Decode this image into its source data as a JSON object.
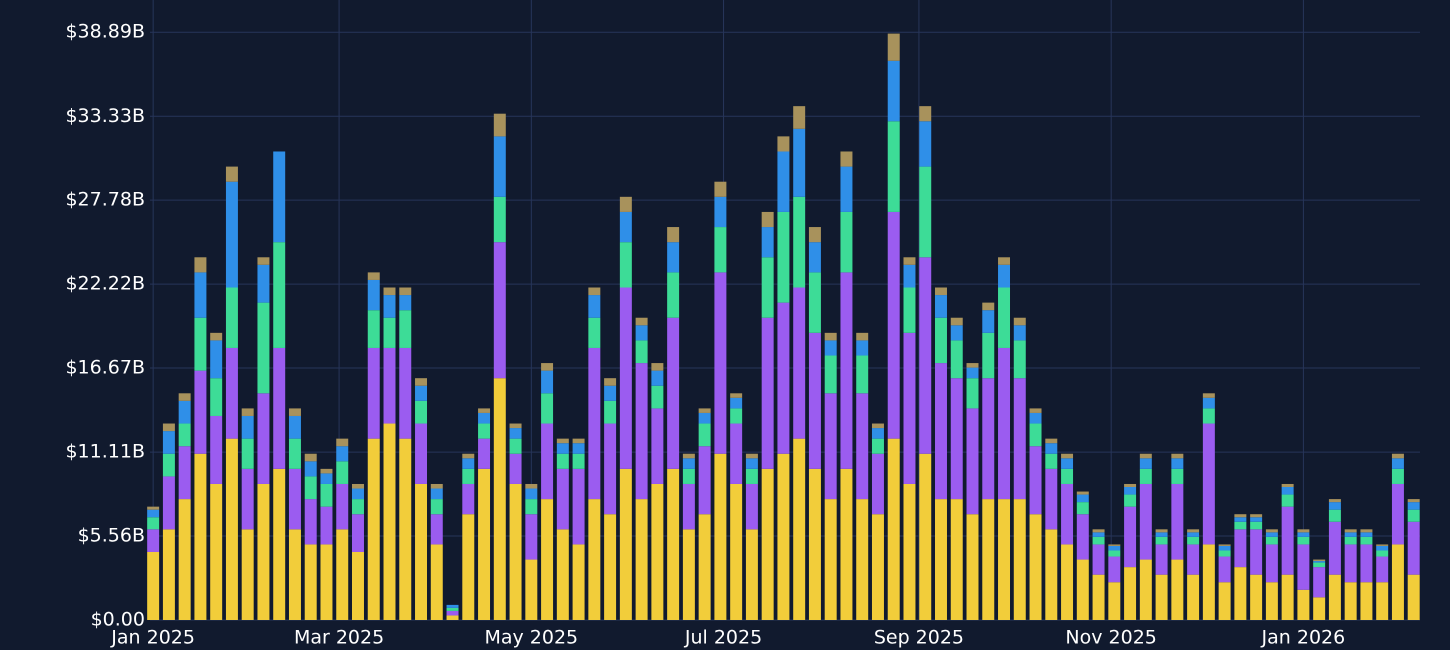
{
  "chart_data": {
    "type": "stacked-bar",
    "x": [
      "2025-01-01",
      "2025-01-06",
      "2025-01-11",
      "2025-01-16",
      "2025-01-21",
      "2025-01-26",
      "2025-01-31",
      "2025-02-05",
      "2025-02-10",
      "2025-02-15",
      "2025-02-20",
      "2025-02-25",
      "2025-03-02",
      "2025-03-07",
      "2025-03-12",
      "2025-03-17",
      "2025-03-22",
      "2025-03-27",
      "2025-04-01",
      "2025-04-06",
      "2025-04-11",
      "2025-04-16",
      "2025-04-21",
      "2025-04-26",
      "2025-05-01",
      "2025-05-06",
      "2025-05-11",
      "2025-05-16",
      "2025-05-21",
      "2025-05-26",
      "2025-05-31",
      "2025-06-05",
      "2025-06-10",
      "2025-06-15",
      "2025-06-20",
      "2025-06-25",
      "2025-06-30",
      "2025-07-05",
      "2025-07-10",
      "2025-07-15",
      "2025-07-20",
      "2025-07-25",
      "2025-07-30",
      "2025-08-04",
      "2025-08-09",
      "2025-08-14",
      "2025-08-19",
      "2025-08-24",
      "2025-08-29",
      "2025-09-03",
      "2025-09-08",
      "2025-09-13",
      "2025-09-18",
      "2025-09-23",
      "2025-09-28",
      "2025-10-03",
      "2025-10-08",
      "2025-10-13",
      "2025-10-18",
      "2025-10-23",
      "2025-10-28",
      "2025-11-02",
      "2025-11-07",
      "2025-11-12",
      "2025-11-17",
      "2025-11-22",
      "2025-11-27",
      "2025-12-02",
      "2025-12-07",
      "2025-12-12",
      "2025-12-17",
      "2025-12-22",
      "2025-12-27",
      "2026-01-01",
      "2026-01-06",
      "2026-01-11",
      "2026-01-16",
      "2026-01-21",
      "2026-01-26",
      "2026-01-31",
      "2026-02-05"
    ],
    "series": [
      {
        "color": "#f2cd3a",
        "values": [
          4.5,
          6,
          8,
          11,
          9,
          12,
          6,
          9,
          10,
          6,
          5,
          5,
          6,
          4.5,
          12,
          13,
          12,
          9,
          5,
          0.3,
          7,
          10,
          16,
          9,
          4,
          8,
          6,
          5,
          8,
          7,
          10,
          8,
          9,
          10,
          6,
          7,
          11,
          9,
          6,
          10,
          11,
          12,
          10,
          8,
          10,
          8,
          7,
          12,
          9,
          11,
          8,
          8,
          7,
          8,
          8,
          8,
          7,
          6,
          5,
          4,
          3,
          2.5,
          3.5,
          4,
          3,
          4,
          3,
          5,
          2.5,
          3.5,
          3,
          2.5,
          3,
          2,
          1.5,
          3,
          2.5,
          2.5,
          2.5,
          5,
          3
        ]
      },
      {
        "color": "#9b5cf0",
        "values": [
          1.5,
          3.5,
          3.5,
          5.5,
          4.5,
          6,
          4,
          6,
          8,
          4,
          3,
          2.5,
          3,
          2.5,
          6,
          5,
          6,
          4,
          2,
          0.3,
          2,
          2,
          9,
          2,
          3,
          5,
          4,
          5,
          10,
          6,
          12,
          9,
          5,
          10,
          3,
          4.5,
          12,
          4,
          3,
          10,
          10,
          10,
          9,
          7,
          13,
          7,
          4,
          15,
          10,
          13,
          9,
          8,
          7,
          8,
          10,
          8,
          4.5,
          4,
          4,
          3,
          2,
          1.7,
          4,
          5,
          2,
          5,
          2,
          8,
          1.7,
          2.5,
          3,
          2.5,
          4.5,
          3,
          2,
          3.5,
          2.5,
          2.5,
          1.7,
          4,
          3.5
        ]
      },
      {
        "color": "#3ddc97",
        "values": [
          0.8,
          1.5,
          1.5,
          3.5,
          2.5,
          4,
          2,
          6,
          7,
          2,
          1.5,
          1.5,
          1.5,
          1,
          2.5,
          2,
          2.5,
          1.5,
          1,
          0.2,
          1,
          1,
          3,
          1,
          1,
          2,
          1,
          1,
          2,
          1.5,
          3,
          1.5,
          1.5,
          3,
          1,
          1.5,
          3,
          1,
          1,
          4,
          6,
          6,
          4,
          2.5,
          4,
          2.5,
          1,
          6,
          3,
          6,
          3,
          2.5,
          2,
          3,
          4,
          2.5,
          1.5,
          1,
          1,
          0.8,
          0.5,
          0.4,
          0.8,
          1,
          0.5,
          1,
          0.5,
          1,
          0.4,
          0.5,
          0.5,
          0.5,
          0.8,
          0.5,
          0.3,
          0.8,
          0.5,
          0.5,
          0.4,
          1,
          0.8
        ]
      },
      {
        "color": "#2f8fe8",
        "values": [
          0.5,
          1.5,
          1.5,
          3,
          2.5,
          7,
          1.5,
          2.5,
          6,
          1.5,
          1,
          0.7,
          1,
          0.7,
          2,
          1.5,
          1,
          1,
          0.7,
          0.2,
          0.7,
          0.7,
          4,
          0.7,
          0.7,
          1.5,
          0.7,
          0.7,
          1.5,
          1,
          2,
          1,
          1,
          2,
          0.7,
          0.7,
          2,
          0.7,
          0.7,
          2,
          4,
          4.5,
          2,
          1,
          3,
          1,
          0.7,
          4,
          1.5,
          3,
          1.5,
          1,
          0.7,
          1.5,
          1.5,
          1,
          0.7,
          0.7,
          0.7,
          0.5,
          0.3,
          0.3,
          0.5,
          0.7,
          0.3,
          0.7,
          0.3,
          0.7,
          0.3,
          0.3,
          0.3,
          0.3,
          0.5,
          0.3,
          0.1,
          0.5,
          0.3,
          0.3,
          0.3,
          0.7,
          0.5
        ]
      },
      {
        "color": "#a8925c",
        "values": [
          0.2,
          0.5,
          0.5,
          1,
          0.5,
          1,
          0.5,
          0.5,
          0,
          0.5,
          0.5,
          0.3,
          0.5,
          0.3,
          0.5,
          0.5,
          0.5,
          0.5,
          0.3,
          0,
          0.3,
          0.3,
          1.5,
          0.3,
          0.3,
          0.5,
          0.3,
          0.3,
          0.5,
          0.5,
          1,
          0.5,
          0.5,
          1,
          0.3,
          0.3,
          1,
          0.3,
          0.3,
          1,
          1,
          1.5,
          1,
          0.5,
          1,
          0.5,
          0.3,
          1.8,
          0.5,
          1,
          0.5,
          0.5,
          0.3,
          0.5,
          0.5,
          0.5,
          0.3,
          0.3,
          0.3,
          0.2,
          0.2,
          0.1,
          0.2,
          0.3,
          0.2,
          0.3,
          0.2,
          0.3,
          0.1,
          0.2,
          0.2,
          0.2,
          0.2,
          0.2,
          0.1,
          0.2,
          0.2,
          0.2,
          0.1,
          0.3,
          0.2
        ]
      }
    ],
    "xlim": [
      "2024-12-31",
      "2026-02-07"
    ],
    "xticks": [
      {
        "value": "2025-01-01",
        "label": "Jan 2025"
      },
      {
        "value": "2025-03-01",
        "label": "Mar 2025"
      },
      {
        "value": "2025-05-01",
        "label": "May 2025"
      },
      {
        "value": "2025-07-01",
        "label": "Jul 2025"
      },
      {
        "value": "2025-09-01",
        "label": "Sep 2025"
      },
      {
        "value": "2025-11-01",
        "label": "Nov 2025"
      },
      {
        "value": "2026-01-01",
        "label": "Jan 2026"
      }
    ],
    "ylim": [
      0,
      39.7
    ],
    "yticks": [
      {
        "value": 0,
        "label": "$0.00"
      },
      {
        "value": 5.56,
        "label": "$5.56B"
      },
      {
        "value": 11.11,
        "label": "$11.11B"
      },
      {
        "value": 16.67,
        "label": "$16.67B"
      },
      {
        "value": 22.22,
        "label": "$22.22B"
      },
      {
        "value": 27.78,
        "label": "$27.78B"
      },
      {
        "value": 33.33,
        "label": "$33.33B"
      },
      {
        "value": 38.89,
        "label": "$38.89B"
      }
    ],
    "grid": true
  }
}
